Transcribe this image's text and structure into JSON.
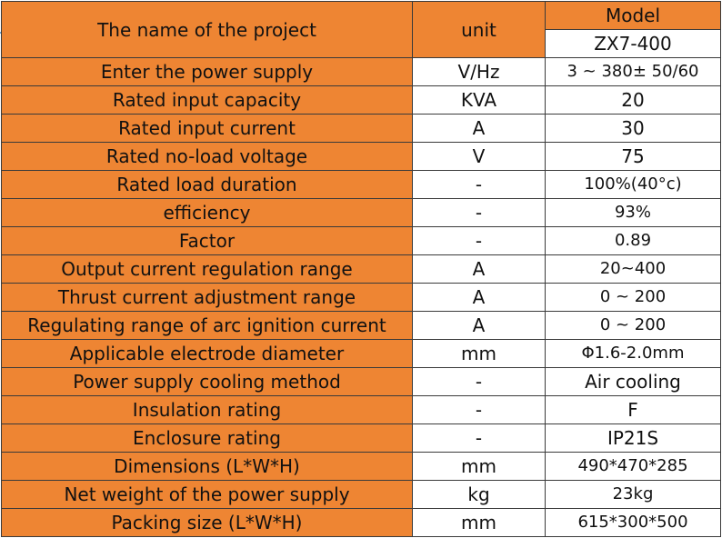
{
  "header": {
    "project_label": "The name of the project",
    "unit_label": "unit",
    "model_label": "Model",
    "model_value": "ZX7-400"
  },
  "rows": [
    {
      "name": "Enter the power supply",
      "unit": "V/Hz",
      "value": "3 ~ 380± 50/60"
    },
    {
      "name": "Rated input capacity",
      "unit": "KVA",
      "value": "20"
    },
    {
      "name": "Rated input current",
      "unit": "A",
      "value": "30"
    },
    {
      "name": "Rated no-load voltage",
      "unit": "V",
      "value": "75"
    },
    {
      "name": "Rated load duration",
      "unit": "-",
      "value": "100%(40°c)"
    },
    {
      "name": "efficiency",
      "unit": "-",
      "value": "93%"
    },
    {
      "name": "Factor",
      "unit": "-",
      "value": "0.89"
    },
    {
      "name": "Output current regulation range",
      "unit": "A",
      "value": "20~400"
    },
    {
      "name": "Thrust current adjustment range",
      "unit": "A",
      "value": "0 ~ 200"
    },
    {
      "name": "Regulating range of arc ignition current",
      "unit": "A",
      "value": "0 ~ 200"
    },
    {
      "name": "Applicable electrode diameter",
      "unit": "mm",
      "value": "Φ1.6-2.0mm"
    },
    {
      "name": "Power supply cooling method",
      "unit": "-",
      "value": "Air cooling"
    },
    {
      "name": "Insulation rating",
      "unit": "-",
      "value": "F"
    },
    {
      "name": "Enclosure rating",
      "unit": "-",
      "value": "IP21S"
    },
    {
      "name": "Dimensions (L*W*H)",
      "unit": "mm",
      "value": "490*470*285"
    },
    {
      "name": "Net weight of the power supply",
      "unit": "kg",
      "value": "23kg"
    },
    {
      "name": "Packing size (L*W*H)",
      "unit": "mm",
      "value": "615*300*500"
    }
  ],
  "colors": {
    "accent": "#ee8533",
    "cell": "#ffffff",
    "border": "#3a3a3a"
  }
}
